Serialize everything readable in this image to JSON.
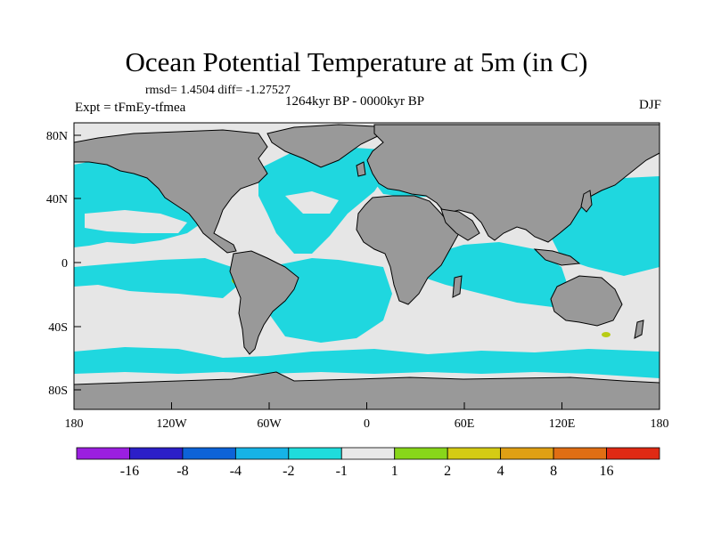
{
  "title": "Ocean Potential Temperature at 5m (in C)",
  "stats": {
    "rmsd_label": "rmsd= 1.4504",
    "diff_label": "diff= -1.27527"
  },
  "experiment": "Expt = tFmEy-tfmea",
  "period": "1264kyr BP - 0000kyr BP",
  "season": "DJF",
  "map": {
    "projection": "cylindrical equidistant",
    "lon_range": [
      -180,
      180
    ],
    "lat_range": [
      -90,
      90
    ],
    "x_ticks": [
      "180",
      "120W",
      "60W",
      "0",
      "60E",
      "120E",
      "180"
    ],
    "y_ticks": [
      "80N",
      "40N",
      "0",
      "40S",
      "80S"
    ],
    "land_color": "#999999",
    "ocean_default_color": "#e6e6e6"
  },
  "colorbar": {
    "colors": [
      "#9b1fe0",
      "#2c1fc8",
      "#0d63d8",
      "#16b3e6",
      "#1fdcdc",
      "#e8e8e8",
      "#88d61a",
      "#d4cc14",
      "#e0a014",
      "#e06e14",
      "#e02a14"
    ],
    "labels": [
      "-16",
      "-8",
      "-4",
      "-2",
      "-1",
      "1",
      "2",
      "4",
      "8",
      "16"
    ]
  }
}
